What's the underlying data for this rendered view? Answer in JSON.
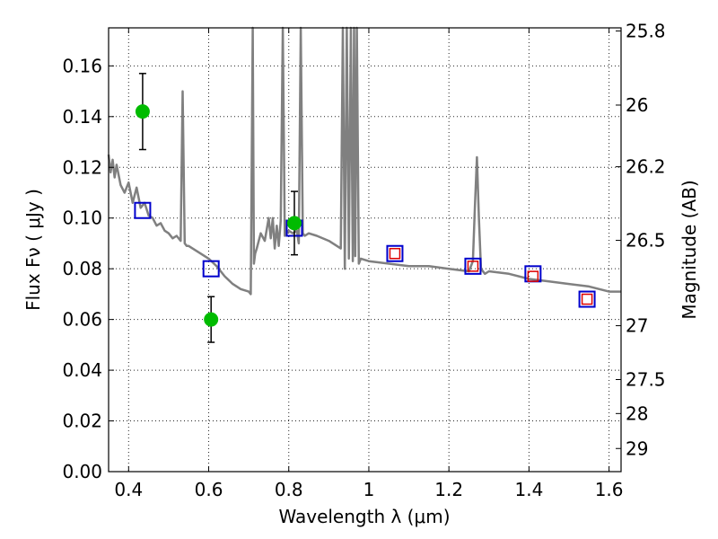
{
  "chart_data": {
    "type": "scatter",
    "xlabel": "Wavelength  λ (μm)",
    "ylabel": "Flux  Fν  ( μJy )",
    "ylabel_right": "Magnitude (AB)",
    "xlim": [
      0.35,
      1.63
    ],
    "ylim": [
      0.0,
      0.175
    ],
    "grid": true,
    "x_ticks": [
      0.4,
      0.6,
      0.8,
      1.0,
      1.2,
      1.4,
      1.6
    ],
    "x_tick_labels": [
      "0.4",
      "0.6",
      "0.8",
      "1",
      "1.2",
      "1.4",
      "1.6"
    ],
    "y_ticks": [
      0.0,
      0.02,
      0.04,
      0.06,
      0.08,
      0.1,
      0.12,
      0.14,
      0.16
    ],
    "y_tick_labels": [
      "0.00",
      "0.02",
      "0.04",
      "0.06",
      "0.08",
      "0.10",
      "0.12",
      "0.14",
      "0.16"
    ],
    "right_ticks": [
      {
        "mag": 25.8,
        "label": "25.8"
      },
      {
        "mag": 26.0,
        "label": "26"
      },
      {
        "mag": 26.2,
        "label": "26.2"
      },
      {
        "mag": 26.5,
        "label": "26.5"
      },
      {
        "mag": 27.0,
        "label": "27"
      },
      {
        "mag": 27.5,
        "label": "27.5"
      },
      {
        "mag": 28.0,
        "label": "28"
      },
      {
        "mag": 29.0,
        "label": "29"
      }
    ],
    "colors": {
      "spectrum": "#808080",
      "observed": "#00bb00",
      "model_blue": "#0000cc",
      "model_red": "#dd0000",
      "errorbar": "#000000"
    },
    "spectrum": {
      "x": [
        0.35,
        0.355,
        0.36,
        0.365,
        0.37,
        0.38,
        0.39,
        0.4,
        0.41,
        0.42,
        0.43,
        0.44,
        0.45,
        0.46,
        0.47,
        0.48,
        0.49,
        0.5,
        0.51,
        0.52,
        0.53,
        0.535,
        0.54,
        0.545,
        0.55,
        0.57,
        0.6,
        0.62,
        0.64,
        0.66,
        0.68,
        0.7,
        0.705,
        0.71,
        0.713,
        0.716,
        0.72,
        0.73,
        0.74,
        0.75,
        0.755,
        0.76,
        0.765,
        0.77,
        0.775,
        0.78,
        0.785,
        0.79,
        0.8,
        0.81,
        0.82,
        0.825,
        0.83,
        0.835,
        0.84,
        0.85,
        0.87,
        0.9,
        0.93,
        0.935,
        0.94,
        0.945,
        0.95,
        0.955,
        0.96,
        0.963,
        0.966,
        0.97,
        0.975,
        0.98,
        1.0,
        1.05,
        1.1,
        1.15,
        1.2,
        1.25,
        1.26,
        1.265,
        1.27,
        1.275,
        1.28,
        1.29,
        1.3,
        1.35,
        1.4,
        1.45,
        1.5,
        1.55,
        1.6,
        1.63
      ],
      "y": [
        0.125,
        0.118,
        0.123,
        0.116,
        0.121,
        0.113,
        0.11,
        0.114,
        0.106,
        0.112,
        0.104,
        0.106,
        0.101,
        0.1,
        0.097,
        0.098,
        0.095,
        0.094,
        0.092,
        0.093,
        0.091,
        0.15,
        0.09,
        0.089,
        0.089,
        0.087,
        0.084,
        0.081,
        0.077,
        0.074,
        0.072,
        0.071,
        0.07,
        0.175,
        0.082,
        0.086,
        0.088,
        0.094,
        0.091,
        0.1,
        0.092,
        0.1,
        0.088,
        0.097,
        0.089,
        0.099,
        0.175,
        0.093,
        0.095,
        0.094,
        0.095,
        0.09,
        0.175,
        0.094,
        0.093,
        0.094,
        0.093,
        0.091,
        0.088,
        0.175,
        0.08,
        0.175,
        0.084,
        0.175,
        0.083,
        0.175,
        0.085,
        0.175,
        0.082,
        0.084,
        0.083,
        0.082,
        0.081,
        0.081,
        0.08,
        0.079,
        0.083,
        0.105,
        0.124,
        0.1,
        0.08,
        0.078,
        0.079,
        0.078,
        0.076,
        0.075,
        0.074,
        0.073,
        0.071,
        0.071
      ]
    },
    "series": [
      {
        "points": [
          {
            "x": 0.435,
            "y": 0.142,
            "err": 0.015
          },
          {
            "x": 0.606,
            "y": 0.06,
            "err": 0.009
          },
          {
            "x": 0.814,
            "y": 0.098,
            "err": 0.0125
          }
        ]
      },
      {
        "points": [
          {
            "x": 0.435,
            "y": 0.103
          },
          {
            "x": 0.606,
            "y": 0.08
          },
          {
            "x": 0.814,
            "y": 0.096
          },
          {
            "x": 1.065,
            "y": 0.086
          },
          {
            "x": 1.26,
            "y": 0.081
          },
          {
            "x": 1.41,
            "y": 0.078
          },
          {
            "x": 1.545,
            "y": 0.068
          }
        ]
      },
      {
        "points": [
          {
            "x": 1.065,
            "y": 0.086
          },
          {
            "x": 1.26,
            "y": 0.081
          },
          {
            "x": 1.41,
            "y": 0.077
          },
          {
            "x": 1.545,
            "y": 0.068
          }
        ]
      }
    ]
  }
}
